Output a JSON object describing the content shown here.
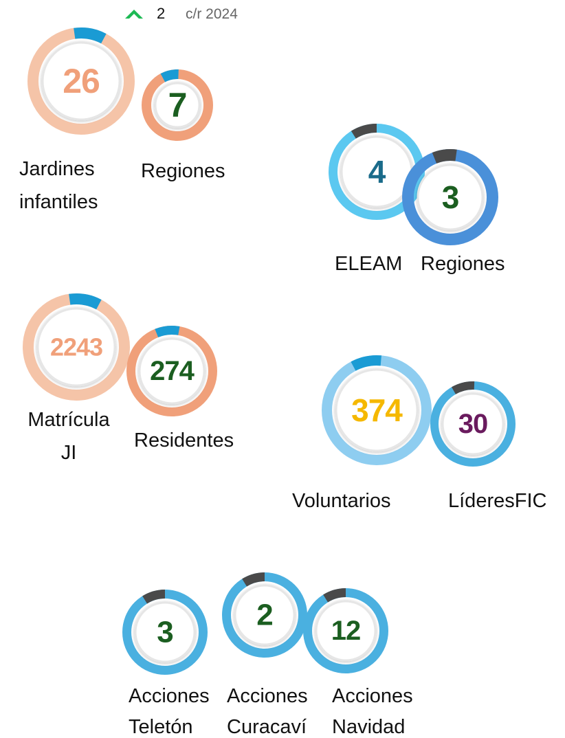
{
  "header": {
    "value": "2",
    "label": "c/r 2024"
  },
  "items": [
    {
      "value": "26",
      "label": [
        "Jardines",
        "infantiles"
      ]
    },
    {
      "value": "7",
      "label": [
        "Regiones"
      ]
    },
    {
      "value": "4",
      "label": [
        "ELEAM"
      ]
    },
    {
      "value": "3",
      "label": [
        "Regiones"
      ]
    },
    {
      "value": "2243",
      "label": [
        "Matrícula",
        "JI"
      ]
    },
    {
      "value": "274",
      "label": [
        "Residentes"
      ]
    },
    {
      "value": "374",
      "label": [
        "Voluntarios"
      ]
    },
    {
      "value": "30",
      "label": [
        "LíderesFIC"
      ]
    },
    {
      "value": "3",
      "label": [
        "Acciones",
        "Teletón"
      ]
    },
    {
      "value": "2",
      "label": [
        "Acciones",
        "Curacaví"
      ]
    },
    {
      "value": "12",
      "label": [
        "Acciones",
        "Navidad"
      ]
    }
  ]
}
